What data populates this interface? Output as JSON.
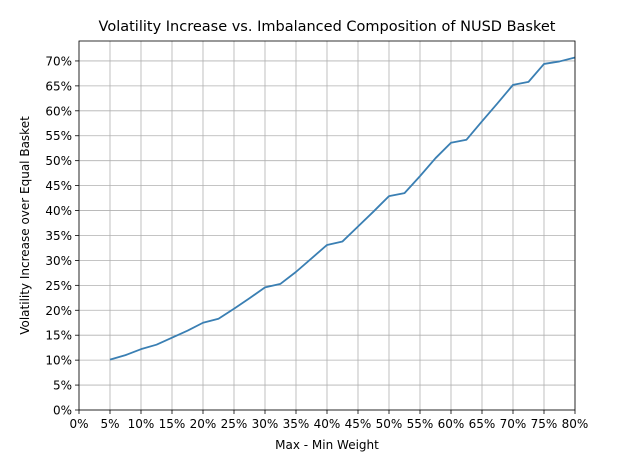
{
  "chart_data": {
    "type": "line",
    "title": "Volatility Increase vs. Imbalanced Composition of NUSD Basket",
    "xlabel": "Max - Min Weight",
    "ylabel": "Volatility Increase over Equal Basket",
    "xlim": [
      0,
      80
    ],
    "ylim": [
      0,
      74
    ],
    "grid": true,
    "x_ticks": [
      0,
      5,
      10,
      15,
      20,
      25,
      30,
      35,
      40,
      45,
      50,
      55,
      60,
      65,
      70,
      75,
      80
    ],
    "x_tick_labels": [
      "0%",
      "5%",
      "10%",
      "15%",
      "20%",
      "25%",
      "30%",
      "35%",
      "40%",
      "45%",
      "50%",
      "55%",
      "60%",
      "65%",
      "70%",
      "75%",
      "80%"
    ],
    "y_ticks": [
      0,
      5,
      10,
      15,
      20,
      25,
      30,
      35,
      40,
      45,
      50,
      55,
      60,
      65,
      70
    ],
    "y_tick_labels": [
      "0%",
      "5%",
      "10%",
      "15%",
      "20%",
      "25%",
      "30%",
      "35%",
      "40%",
      "45%",
      "50%",
      "55%",
      "60%",
      "65%",
      "70%"
    ],
    "series": [
      {
        "color": "#3a7fb3",
        "x": [
          5,
          7.5,
          10,
          12.5,
          15,
          17.5,
          20,
          22.5,
          25,
          27.5,
          30,
          32.5,
          35,
          37.5,
          40,
          42.5,
          45,
          47.5,
          50,
          52.5,
          55,
          57.5,
          60,
          62.5,
          65,
          67.5,
          70,
          72.5,
          75,
          77.5,
          80
        ],
        "y": [
          10.1,
          11.0,
          12.2,
          13.1,
          14.5,
          15.9,
          17.5,
          18.3,
          20.3,
          22.4,
          24.6,
          25.3,
          27.7,
          30.4,
          33.1,
          33.8,
          36.8,
          39.8,
          42.9,
          43.5,
          46.9,
          50.5,
          53.6,
          54.2,
          57.9,
          61.5,
          65.2,
          65.8,
          69.4,
          69.9,
          70.7
        ]
      }
    ]
  }
}
